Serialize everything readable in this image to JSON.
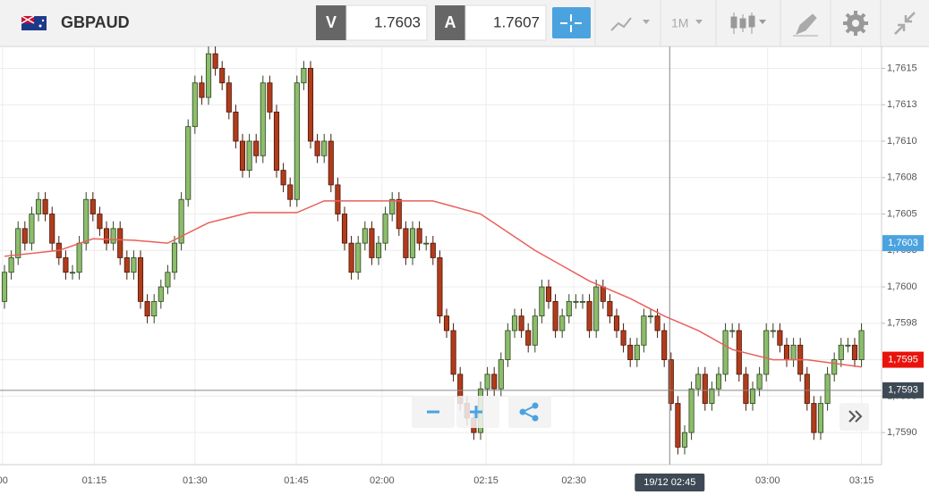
{
  "header": {
    "symbol": "GBPAUD",
    "bid_label": "V",
    "bid": 1.7603,
    "ask_label": "A",
    "ask": 1.7607,
    "timeframe": "1M"
  },
  "chart_data": {
    "type": "candlestick",
    "up_color": "#8cbd6b",
    "down_color": "#b03c1c",
    "grid": true,
    "xlim": [
      -0.66,
      128.95
    ],
    "ylim": [
      1.75878,
      1.76165
    ],
    "xticks": [
      {
        "value": -0.3,
        "label": "00"
      },
      {
        "value": 13.2,
        "label": "01:15"
      },
      {
        "value": 28,
        "label": "01:30"
      },
      {
        "value": 42.9,
        "label": "01:45"
      },
      {
        "value": 55.5,
        "label": "02:00"
      },
      {
        "value": 70.8,
        "label": "02:15"
      },
      {
        "value": 83.7,
        "label": "02:30"
      },
      {
        "value": 112.2,
        "label": "03:00"
      },
      {
        "value": 126,
        "label": "03:15"
      }
    ],
    "yticks": [
      {
        "value": 1.759,
        "label": "1,7590"
      },
      {
        "value": 1.75925,
        "label": "1,7593"
      },
      {
        "value": 1.7595,
        "label": "1,7595"
      },
      {
        "value": 1.75975,
        "label": "1,7598"
      },
      {
        "value": 1.76,
        "label": "1,7600"
      },
      {
        "value": 1.76025,
        "label": "1,7603"
      },
      {
        "value": 1.7605,
        "label": "1,7605"
      },
      {
        "value": 1.76075,
        "label": "1,7608"
      },
      {
        "value": 1.761,
        "label": "1,7610"
      },
      {
        "value": 1.76125,
        "label": "1,7613"
      },
      {
        "value": 1.7615,
        "label": "1,7615"
      }
    ],
    "open": [
      1.7599,
      1.7601,
      1.7602,
      1.7604,
      1.7603,
      1.7605,
      1.7606,
      1.7605,
      1.7603,
      1.7602,
      1.7601,
      1.7601,
      1.7603,
      1.7606,
      1.7605,
      1.7604,
      1.7603,
      1.7604,
      1.7602,
      1.7601,
      1.7602,
      1.7599,
      1.7598,
      1.7599,
      1.76,
      1.7601,
      1.7603,
      1.7606,
      1.7611,
      1.7614,
      1.7613,
      1.7616,
      1.7615,
      1.7614,
      1.7612,
      1.761,
      1.7608,
      1.761,
      1.7609,
      1.7614,
      1.7612,
      1.7608,
      1.7607,
      1.7606,
      1.7614,
      1.7615,
      1.761,
      1.7609,
      1.761,
      1.7607,
      1.7605,
      1.7603,
      1.7601,
      1.7603,
      1.7604,
      1.7602,
      1.7603,
      1.7605,
      1.7606,
      1.7604,
      1.7602,
      1.7604,
      1.7603,
      1.7603,
      1.7602,
      1.7598,
      1.7597,
      1.7594,
      1.7592,
      1.7591,
      1.759,
      1.7593,
      1.7594,
      1.7593,
      1.7595,
      1.7597,
      1.7598,
      1.7597,
      1.7596,
      1.7598,
      1.76,
      1.7599,
      1.7597,
      1.7598,
      1.7599,
      1.7599,
      1.7599,
      1.7597,
      1.76,
      1.7599,
      1.7598,
      1.7597,
      1.7596,
      1.7595,
      1.7596,
      1.7598,
      1.7598,
      1.7597,
      1.7595,
      1.7592,
      1.7589,
      1.759,
      1.7593,
      1.7594,
      1.7592,
      1.7593,
      1.7594,
      1.7597,
      1.7597,
      1.7594,
      1.7592,
      1.7593,
      1.7594,
      1.7597,
      1.7597,
      1.7596,
      1.7595,
      1.7596,
      1.7594,
      1.7592,
      1.759,
      1.7592,
      1.7594,
      1.7595,
      1.7596,
      1.7596,
      1.7595
    ],
    "high": [
      1.76015,
      1.76025,
      1.76045,
      1.76045,
      1.76055,
      1.76065,
      1.76065,
      1.76055,
      1.76035,
      1.76025,
      1.76015,
      1.76035,
      1.76065,
      1.76065,
      1.76055,
      1.76045,
      1.76045,
      1.76045,
      1.76025,
      1.76025,
      1.76025,
      1.75995,
      1.75995,
      1.76005,
      1.76015,
      1.76035,
      1.76065,
      1.76115,
      1.76145,
      1.76145,
      1.76165,
      1.76165,
      1.76155,
      1.76145,
      1.76125,
      1.76105,
      1.76105,
      1.76105,
      1.76145,
      1.76145,
      1.76125,
      1.76085,
      1.76075,
      1.76145,
      1.76155,
      1.76155,
      1.76105,
      1.76105,
      1.76105,
      1.76075,
      1.76055,
      1.76035,
      1.76035,
      1.76045,
      1.76045,
      1.76035,
      1.76055,
      1.76065,
      1.76065,
      1.76045,
      1.76045,
      1.76045,
      1.76035,
      1.76035,
      1.76025,
      1.75985,
      1.75975,
      1.75945,
      1.75925,
      1.75915,
      1.75935,
      1.75945,
      1.75945,
      1.75955,
      1.75975,
      1.75985,
      1.75985,
      1.75975,
      1.75985,
      1.76005,
      1.76005,
      1.75995,
      1.75985,
      1.75995,
      1.75995,
      1.75995,
      1.75995,
      1.76005,
      1.76005,
      1.75995,
      1.75985,
      1.75975,
      1.75965,
      1.75965,
      1.75985,
      1.75985,
      1.75985,
      1.75975,
      1.75955,
      1.75925,
      1.75905,
      1.75935,
      1.75945,
      1.75945,
      1.75935,
      1.75945,
      1.75975,
      1.75975,
      1.75975,
      1.75945,
      1.75935,
      1.75945,
      1.75975,
      1.75975,
      1.75975,
      1.75965,
      1.75965,
      1.75965,
      1.75945,
      1.75925,
      1.75925,
      1.75945,
      1.75955,
      1.75965,
      1.75965,
      1.75965,
      1.75975
    ],
    "low": [
      1.75985,
      1.76005,
      1.76015,
      1.76025,
      1.76025,
      1.76045,
      1.76045,
      1.76025,
      1.76015,
      1.76005,
      1.76005,
      1.76005,
      1.76025,
      1.76045,
      1.76035,
      1.76025,
      1.76025,
      1.76015,
      1.76005,
      1.76005,
      1.75985,
      1.75975,
      1.75975,
      1.75985,
      1.75995,
      1.76005,
      1.76025,
      1.76055,
      1.76105,
      1.76125,
      1.76125,
      1.76145,
      1.76135,
      1.76115,
      1.76095,
      1.76075,
      1.76075,
      1.76085,
      1.76085,
      1.76115,
      1.76075,
      1.76065,
      1.76055,
      1.76055,
      1.76135,
      1.76095,
      1.76085,
      1.76085,
      1.76065,
      1.76045,
      1.76025,
      1.76005,
      1.76005,
      1.76025,
      1.76015,
      1.76015,
      1.76025,
      1.76045,
      1.76035,
      1.76015,
      1.76015,
      1.76025,
      1.76025,
      1.76015,
      1.75975,
      1.75965,
      1.75935,
      1.75915,
      1.75905,
      1.75895,
      1.75895,
      1.75925,
      1.75925,
      1.75925,
      1.75945,
      1.75965,
      1.75965,
      1.75955,
      1.75955,
      1.75975,
      1.75985,
      1.75965,
      1.75965,
      1.75975,
      1.75985,
      1.75985,
      1.75965,
      1.75965,
      1.75985,
      1.75975,
      1.75965,
      1.75955,
      1.75945,
      1.75945,
      1.75955,
      1.75975,
      1.75965,
      1.75945,
      1.75915,
      1.75885,
      1.75885,
      1.75895,
      1.75925,
      1.75915,
      1.75915,
      1.75925,
      1.75935,
      1.75965,
      1.75935,
      1.75915,
      1.75915,
      1.75925,
      1.75935,
      1.75965,
      1.75955,
      1.75945,
      1.75945,
      1.75935,
      1.75915,
      1.75895,
      1.75895,
      1.75915,
      1.75935,
      1.75945,
      1.75955,
      1.75945,
      1.75945
    ],
    "close": [
      1.7601,
      1.7602,
      1.7604,
      1.7603,
      1.7605,
      1.7606,
      1.7605,
      1.7603,
      1.7602,
      1.7601,
      1.7601,
      1.7603,
      1.7606,
      1.7605,
      1.7604,
      1.7603,
      1.7604,
      1.7602,
      1.7601,
      1.7602,
      1.7599,
      1.7598,
      1.7599,
      1.76,
      1.7601,
      1.7603,
      1.7606,
      1.7611,
      1.7614,
      1.7613,
      1.7616,
      1.7615,
      1.7614,
      1.7612,
      1.761,
      1.7608,
      1.761,
      1.7609,
      1.7614,
      1.7612,
      1.7608,
      1.7607,
      1.7606,
      1.7614,
      1.7615,
      1.761,
      1.7609,
      1.761,
      1.7607,
      1.7605,
      1.7603,
      1.7601,
      1.7603,
      1.7604,
      1.7602,
      1.7603,
      1.7605,
      1.7606,
      1.7604,
      1.7602,
      1.7604,
      1.7603,
      1.7603,
      1.7602,
      1.7598,
      1.7597,
      1.7594,
      1.7592,
      1.7591,
      1.759,
      1.7593,
      1.7594,
      1.7593,
      1.7595,
      1.7597,
      1.7598,
      1.7597,
      1.7596,
      1.7598,
      1.76,
      1.7599,
      1.7597,
      1.7598,
      1.7599,
      1.7599,
      1.7599,
      1.7597,
      1.76,
      1.7599,
      1.7598,
      1.7597,
      1.7596,
      1.7595,
      1.7596,
      1.7598,
      1.7598,
      1.7597,
      1.7595,
      1.7592,
      1.7589,
      1.759,
      1.7593,
      1.7594,
      1.7592,
      1.7593,
      1.7594,
      1.7597,
      1.7597,
      1.7594,
      1.7592,
      1.7593,
      1.7594,
      1.7597,
      1.7597,
      1.7596,
      1.7595,
      1.7596,
      1.7594,
      1.7592,
      1.759,
      1.7592,
      1.7594,
      1.7595,
      1.7596,
      1.7596,
      1.7595,
      1.7597
    ],
    "moving_average": {
      "color": "#e8605a",
      "x": [
        0,
        8,
        13,
        19,
        24,
        30,
        36,
        43,
        47,
        55,
        63,
        70,
        78,
        86,
        92,
        97,
        102,
        107,
        113,
        118,
        126
      ],
      "values": [
        1.76021,
        1.76025,
        1.76033,
        1.76032,
        1.7603,
        1.76044,
        1.76051,
        1.76051,
        1.76059,
        1.76059,
        1.76059,
        1.7605,
        1.76025,
        1.76004,
        1.75992,
        1.7598,
        1.7597,
        1.75957,
        1.7595,
        1.7595,
        1.75945
      ]
    },
    "price_labels": [
      {
        "value": 1.7603,
        "label": "1,7603",
        "color": "#4aa3df"
      },
      {
        "value": 1.7595,
        "label": "1,7595",
        "color": "#e8140c"
      }
    ],
    "crosshair": {
      "x": 97.8,
      "x_label": "19/12 02:45",
      "y": 1.75929,
      "y_label": "1,7593"
    }
  }
}
